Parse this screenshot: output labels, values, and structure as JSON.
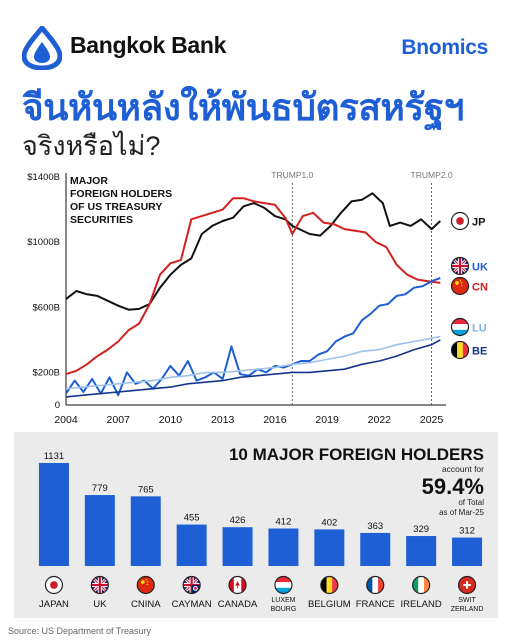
{
  "header": {
    "brand": "Bangkok Bank",
    "logo_icon": "bangkok-bank-lotus-icon",
    "badge": "Bnomics",
    "title_line1": "จีนหันหลังให้พันธบัตรสหรัฐฯ",
    "title_line2": "จริงหรือไม่?",
    "accent_color": "#1e5fd6"
  },
  "source": "Source: US Department of Treasury",
  "chart_data": [
    {
      "type": "line",
      "title": "MAJOR FOREIGN HOLDERS OF US TREASURY SECURITIES",
      "title_lines": [
        "MAJOR",
        "FOREIGN HOLDERS",
        "OF US TREASURY",
        "SECURITIES"
      ],
      "xlabel": "",
      "ylabel": "",
      "xlim": [
        2004,
        2025.6
      ],
      "ylim": [
        0,
        1400
      ],
      "x_ticks": [
        2004,
        2007,
        2010,
        2013,
        2016,
        2019,
        2022,
        2025
      ],
      "y_ticks": [
        {
          "value": 0,
          "label": "0"
        },
        {
          "value": 200,
          "label": "$200B"
        },
        {
          "value": 600,
          "label": "$600B"
        },
        {
          "value": 1000,
          "label": "$1000B"
        },
        {
          "value": 1400,
          "label": "$1400B"
        }
      ],
      "grid": false,
      "annotations": [
        {
          "x": 2017.0,
          "label": "TRUMP1.0"
        },
        {
          "x": 2025.0,
          "label": "TRUMP2.0"
        }
      ],
      "series": [
        {
          "name": "JP",
          "flag": "japan-flag-icon",
          "color": "#111111",
          "label_color": "#111111",
          "points": [
            [
              2004.0,
              650
            ],
            [
              2004.6,
              700
            ],
            [
              2005.2,
              680
            ],
            [
              2005.8,
              670
            ],
            [
              2006.4,
              640
            ],
            [
              2007.0,
              610
            ],
            [
              2007.6,
              585
            ],
            [
              2008.2,
              590
            ],
            [
              2008.8,
              620
            ],
            [
              2009.4,
              720
            ],
            [
              2010.0,
              800
            ],
            [
              2010.6,
              860
            ],
            [
              2011.2,
              900
            ],
            [
              2011.8,
              1050
            ],
            [
              2012.4,
              1100
            ],
            [
              2013.0,
              1130
            ],
            [
              2013.6,
              1150
            ],
            [
              2014.2,
              1220
            ],
            [
              2014.8,
              1240
            ],
            [
              2015.4,
              1210
            ],
            [
              2016.0,
              1160
            ],
            [
              2016.6,
              1140
            ],
            [
              2017.0,
              1100
            ],
            [
              2017.4,
              1080
            ],
            [
              2018.0,
              1050
            ],
            [
              2018.6,
              1040
            ],
            [
              2019.2,
              1100
            ],
            [
              2019.8,
              1180
            ],
            [
              2020.4,
              1250
            ],
            [
              2021.0,
              1260
            ],
            [
              2021.6,
              1300
            ],
            [
              2022.2,
              1240
            ],
            [
              2022.6,
              1100
            ],
            [
              2023.2,
              1120
            ],
            [
              2023.8,
              1100
            ],
            [
              2024.4,
              1140
            ],
            [
              2025.0,
              1080
            ],
            [
              2025.5,
              1130
            ]
          ]
        },
        {
          "name": "CN",
          "flag": "china-flag-icon",
          "color": "#d32020",
          "label_color": "#d32020",
          "points": [
            [
              2004.0,
              190
            ],
            [
              2004.6,
              210
            ],
            [
              2005.2,
              250
            ],
            [
              2005.8,
              300
            ],
            [
              2006.4,
              340
            ],
            [
              2007.0,
              390
            ],
            [
              2007.6,
              460
            ],
            [
              2008.2,
              500
            ],
            [
              2008.8,
              620
            ],
            [
              2009.4,
              800
            ],
            [
              2010.0,
              870
            ],
            [
              2010.6,
              890
            ],
            [
              2011.2,
              1140
            ],
            [
              2011.8,
              1160
            ],
            [
              2012.4,
              1180
            ],
            [
              2013.0,
              1200
            ],
            [
              2013.6,
              1270
            ],
            [
              2014.2,
              1270
            ],
            [
              2014.8,
              1250
            ],
            [
              2015.4,
              1240
            ],
            [
              2016.0,
              1230
            ],
            [
              2016.6,
              1150
            ],
            [
              2017.0,
              1050
            ],
            [
              2017.6,
              1160
            ],
            [
              2018.2,
              1180
            ],
            [
              2018.8,
              1120
            ],
            [
              2019.4,
              1110
            ],
            [
              2020.0,
              1080
            ],
            [
              2020.6,
              1070
            ],
            [
              2021.2,
              1060
            ],
            [
              2021.8,
              1000
            ],
            [
              2022.4,
              970
            ],
            [
              2023.0,
              860
            ],
            [
              2023.6,
              800
            ],
            [
              2024.2,
              770
            ],
            [
              2024.8,
              760
            ],
            [
              2025.5,
              750
            ]
          ]
        },
        {
          "name": "UK",
          "flag": "uk-flag-icon",
          "color": "#1e5fd6",
          "label_color": "#1e5fd6",
          "points": [
            [
              2004.0,
              70
            ],
            [
              2004.5,
              150
            ],
            [
              2005.0,
              80
            ],
            [
              2005.5,
              160
            ],
            [
              2006.0,
              70
            ],
            [
              2006.5,
              170
            ],
            [
              2007.0,
              60
            ],
            [
              2007.5,
              200
            ],
            [
              2008.0,
              130
            ],
            [
              2008.5,
              150
            ],
            [
              2009.0,
              100
            ],
            [
              2009.5,
              160
            ],
            [
              2010.0,
              240
            ],
            [
              2010.5,
              180
            ],
            [
              2011.0,
              270
            ],
            [
              2011.5,
              150
            ],
            [
              2012.0,
              170
            ],
            [
              2012.5,
              200
            ],
            [
              2013.0,
              160
            ],
            [
              2013.5,
              360
            ],
            [
              2014.0,
              190
            ],
            [
              2014.5,
              180
            ],
            [
              2015.0,
              220
            ],
            [
              2015.5,
              200
            ],
            [
              2016.0,
              240
            ],
            [
              2016.5,
              230
            ],
            [
              2017.0,
              250
            ],
            [
              2017.5,
              270
            ],
            [
              2018.0,
              270
            ],
            [
              2018.5,
              310
            ],
            [
              2019.0,
              330
            ],
            [
              2019.5,
              390
            ],
            [
              2020.0,
              420
            ],
            [
              2020.5,
              440
            ],
            [
              2021.0,
              520
            ],
            [
              2021.5,
              560
            ],
            [
              2022.0,
              610
            ],
            [
              2022.5,
              620
            ],
            [
              2023.0,
              670
            ],
            [
              2023.5,
              680
            ],
            [
              2024.0,
              720
            ],
            [
              2024.5,
              730
            ],
            [
              2025.0,
              760
            ],
            [
              2025.5,
              780
            ]
          ]
        },
        {
          "name": "LU",
          "flag": "luxembourg-flag-icon",
          "color": "#9fc2ec",
          "label_color": "#7fb0ea",
          "points": [
            [
              2004.0,
              100
            ],
            [
              2005.0,
              110
            ],
            [
              2006.0,
              120
            ],
            [
              2007.0,
              130
            ],
            [
              2008.0,
              140
            ],
            [
              2009.0,
              150
            ],
            [
              2010.0,
              170
            ],
            [
              2011.0,
              180
            ],
            [
              2012.0,
              200
            ],
            [
              2013.0,
              200
            ],
            [
              2014.0,
              210
            ],
            [
              2015.0,
              220
            ],
            [
              2016.0,
              230
            ],
            [
              2017.0,
              250
            ],
            [
              2018.0,
              260
            ],
            [
              2019.0,
              280
            ],
            [
              2020.0,
              300
            ],
            [
              2021.0,
              330
            ],
            [
              2022.0,
              340
            ],
            [
              2023.0,
              370
            ],
            [
              2024.0,
              390
            ],
            [
              2025.0,
              410
            ],
            [
              2025.5,
              420
            ]
          ]
        },
        {
          "name": "BE",
          "flag": "belgium-flag-icon",
          "color": "#14358c",
          "label_color": "#14358c",
          "points": [
            [
              2004.0,
              50
            ],
            [
              2005.0,
              60
            ],
            [
              2006.0,
              70
            ],
            [
              2007.0,
              80
            ],
            [
              2008.0,
              90
            ],
            [
              2009.0,
              100
            ],
            [
              2010.0,
              110
            ],
            [
              2011.0,
              130
            ],
            [
              2012.0,
              140
            ],
            [
              2013.0,
              150
            ],
            [
              2014.0,
              170
            ],
            [
              2015.0,
              180
            ],
            [
              2016.0,
              190
            ],
            [
              2017.0,
              200
            ],
            [
              2018.0,
              200
            ],
            [
              2019.0,
              210
            ],
            [
              2020.0,
              220
            ],
            [
              2021.0,
              250
            ],
            [
              2022.0,
              270
            ],
            [
              2023.0,
              300
            ],
            [
              2024.0,
              340
            ],
            [
              2025.0,
              370
            ],
            [
              2025.5,
              400
            ]
          ]
        }
      ]
    },
    {
      "type": "bar",
      "title": "10 MAJOR FOREIGN HOLDERS",
      "callout": {
        "prefix": "account for",
        "value": "59.4%",
        "suffix_line1": "of Total",
        "suffix_line2": "as of Mar-25"
      },
      "ylim": [
        0,
        1131
      ],
      "bar_color": "#1e5fd6",
      "categories": [
        "JAPAN",
        "UK",
        "CNINA",
        "CAYMAN",
        "CANADA",
        "LUXEM BOURG",
        "BELGIUM",
        "FRANCE",
        "IRELAND",
        "SWIT ZERLAND"
      ],
      "category_lines": [
        [
          "JAPAN"
        ],
        [
          "UK"
        ],
        [
          "CNINA"
        ],
        [
          "CAYMAN"
        ],
        [
          "CANADA"
        ],
        [
          "LUXEM",
          "BOURG"
        ],
        [
          "BELGIUM"
        ],
        [
          "FRANCE"
        ],
        [
          "IRELAND"
        ],
        [
          "SWIT",
          "ZERLAND"
        ]
      ],
      "values": [
        1131,
        779,
        765,
        455,
        426,
        412,
        402,
        363,
        329,
        312
      ],
      "value_labels": [
        "1131",
        "779",
        "765",
        "455",
        "426",
        "412",
        "402",
        "363",
        "329",
        "312"
      ],
      "flags": [
        "japan-flag-icon",
        "uk-flag-icon",
        "china-flag-icon",
        "cayman-flag-icon",
        "canada-flag-icon",
        "luxembourg-flag-icon",
        "belgium-flag-icon",
        "france-flag-icon",
        "ireland-flag-icon",
        "switzerland-flag-icon"
      ]
    }
  ]
}
